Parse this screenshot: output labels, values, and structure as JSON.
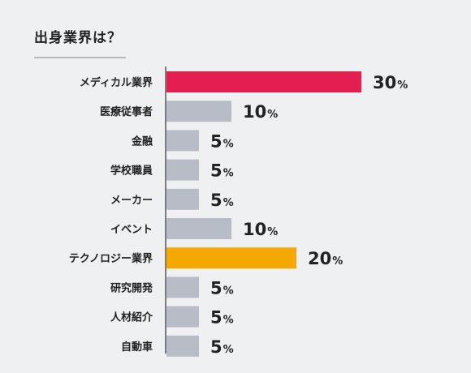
{
  "header": {
    "title": "出身業界は？"
  },
  "colors": {
    "default_bar": "#b8bcc6",
    "highlight_primary": "#e31f52",
    "highlight_secondary": "#f5a800",
    "axis": "#555555",
    "background": "#eef0f2"
  },
  "chart_data": {
    "type": "bar",
    "orientation": "horizontal",
    "title": "出身業界は？",
    "unit": "%",
    "categories": [
      "メディカル業界",
      "医療従事者",
      "金融",
      "学校職員",
      "メーカー",
      "イベント",
      "テクノロジー業界",
      "研究開発",
      "人材紹介",
      "自動車"
    ],
    "values": [
      30,
      10,
      5,
      5,
      5,
      10,
      20,
      5,
      5,
      5
    ],
    "bar_colors": [
      "highlight_primary",
      "default",
      "default",
      "default",
      "default",
      "default",
      "highlight_secondary",
      "default",
      "default",
      "default"
    ],
    "xlim": [
      0,
      30
    ],
    "grid": false,
    "legend": "none"
  }
}
